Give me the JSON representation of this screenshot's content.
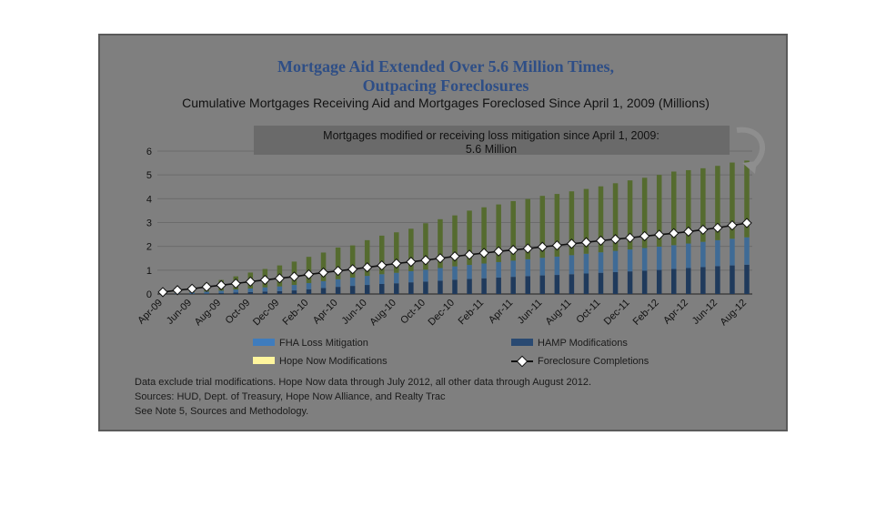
{
  "chart_data": {
    "type": "bar",
    "title": "Mortgage Aid Extended Over 5.6 Million Times,",
    "title_line2": "Outpacing Foreclosures",
    "subtitle": "Cumulative Mortgages Receiving Aid and Mortgages Foreclosed Since April 1, 2009 (Millions)",
    "callout_line1": "Mortgages modified or receiving loss mitigation since April 1, 2009:",
    "callout_line2": "5.6 Million",
    "ylim": [
      0,
      6
    ],
    "yticks": [
      "0",
      "1",
      "2",
      "3",
      "4",
      "5",
      "6"
    ],
    "grid": true,
    "stacked": true,
    "categories": [
      "Apr-09",
      "May-09",
      "Jun-09",
      "Jul-09",
      "Aug-09",
      "Sep-09",
      "Oct-09",
      "Nov-09",
      "Dec-09",
      "Jan-10",
      "Feb-10",
      "Mar-10",
      "Apr-10",
      "May-10",
      "Jun-10",
      "Jul-10",
      "Aug-10",
      "Sep-10",
      "Oct-10",
      "Nov-10",
      "Dec-10",
      "Jan-11",
      "Feb-11",
      "Mar-11",
      "Apr-11",
      "May-11",
      "Jun-11",
      "Jul-11",
      "Aug-11",
      "Sep-11",
      "Oct-11",
      "Nov-11",
      "Dec-11",
      "Jan-12",
      "Feb-12",
      "Mar-12",
      "Apr-12",
      "May-12",
      "Jun-12",
      "Jul-12",
      "Aug-12"
    ],
    "tick_labels": [
      "Apr-09",
      "Jun-09",
      "Aug-09",
      "Oct-09",
      "Dec-09",
      "Feb-10",
      "Apr-10",
      "Jun-10",
      "Aug-10",
      "Oct-10",
      "Dec-10",
      "Feb-11",
      "Apr-11",
      "Jun-11",
      "Aug-11",
      "Oct-11",
      "Dec-11",
      "Feb-12",
      "Apr-12",
      "Jun-12",
      "Aug-12"
    ],
    "series": [
      {
        "name": "HAMP Modifications",
        "type": "bar",
        "color": "#1f3a5c",
        "values": [
          0,
          0,
          0.01,
          0.02,
          0.04,
          0.06,
          0.08,
          0.1,
          0.12,
          0.15,
          0.2,
          0.25,
          0.3,
          0.34,
          0.38,
          0.42,
          0.45,
          0.49,
          0.52,
          0.56,
          0.6,
          0.63,
          0.66,
          0.69,
          0.72,
          0.75,
          0.78,
          0.8,
          0.83,
          0.86,
          0.89,
          0.92,
          0.95,
          0.98,
          1.01,
          1.05,
          1.09,
          1.13,
          1.17,
          1.2,
          1.23
        ]
      },
      {
        "name": "FHA Loss Mitigation",
        "type": "bar",
        "color": "#3f6b96",
        "values": [
          0.02,
          0.04,
          0.06,
          0.08,
          0.1,
          0.13,
          0.15,
          0.18,
          0.2,
          0.23,
          0.26,
          0.29,
          0.32,
          0.35,
          0.38,
          0.41,
          0.44,
          0.47,
          0.5,
          0.53,
          0.56,
          0.59,
          0.62,
          0.65,
          0.68,
          0.71,
          0.74,
          0.77,
          0.8,
          0.83,
          0.86,
          0.89,
          0.92,
          0.95,
          0.98,
          1.0,
          1.03,
          1.06,
          1.09,
          1.12,
          1.15
        ]
      },
      {
        "name": "Hope Now Modifications",
        "type": "bar",
        "color": "#556b2f",
        "values": [
          0.08,
          0.16,
          0.27,
          0.35,
          0.45,
          0.55,
          0.67,
          0.77,
          0.88,
          0.98,
          1.1,
          1.2,
          1.33,
          1.35,
          1.5,
          1.62,
          1.7,
          1.78,
          1.95,
          2.05,
          2.14,
          2.28,
          2.36,
          2.42,
          2.5,
          2.53,
          2.6,
          2.63,
          2.68,
          2.72,
          2.77,
          2.84,
          2.9,
          2.95,
          3.01,
          3.09,
          3.08,
          3.09,
          3.12,
          3.2,
          3.22
        ]
      },
      {
        "name": "Foreclosure Completions",
        "type": "line",
        "color": "#111111",
        "values": [
          0.08,
          0.16,
          0.22,
          0.3,
          0.37,
          0.44,
          0.52,
          0.59,
          0.66,
          0.73,
          0.82,
          0.9,
          0.97,
          1.04,
          1.12,
          1.2,
          1.28,
          1.35,
          1.42,
          1.5,
          1.58,
          1.65,
          1.72,
          1.79,
          1.85,
          1.91,
          1.98,
          2.04,
          2.11,
          2.17,
          2.24,
          2.3,
          2.36,
          2.43,
          2.49,
          2.55,
          2.62,
          2.7,
          2.78,
          2.88,
          2.98
        ]
      }
    ],
    "legend": [
      "FHA Loss Mitigation",
      "HAMP Modifications",
      "Hope Now Modifications",
      "Foreclosure Completions"
    ],
    "legend_colors": [
      "#3f7cbd",
      "#2a4a72",
      "#fff59d",
      "#111111"
    ],
    "notes": [
      "Data exclude trial modifications. Hope Now data through July 2012, all other data through August 2012.",
      "Sources:  HUD, Dept. of Treasury, Hope Now Alliance, and Realty Trac",
      "See Note 5, Sources and Methodology."
    ]
  }
}
